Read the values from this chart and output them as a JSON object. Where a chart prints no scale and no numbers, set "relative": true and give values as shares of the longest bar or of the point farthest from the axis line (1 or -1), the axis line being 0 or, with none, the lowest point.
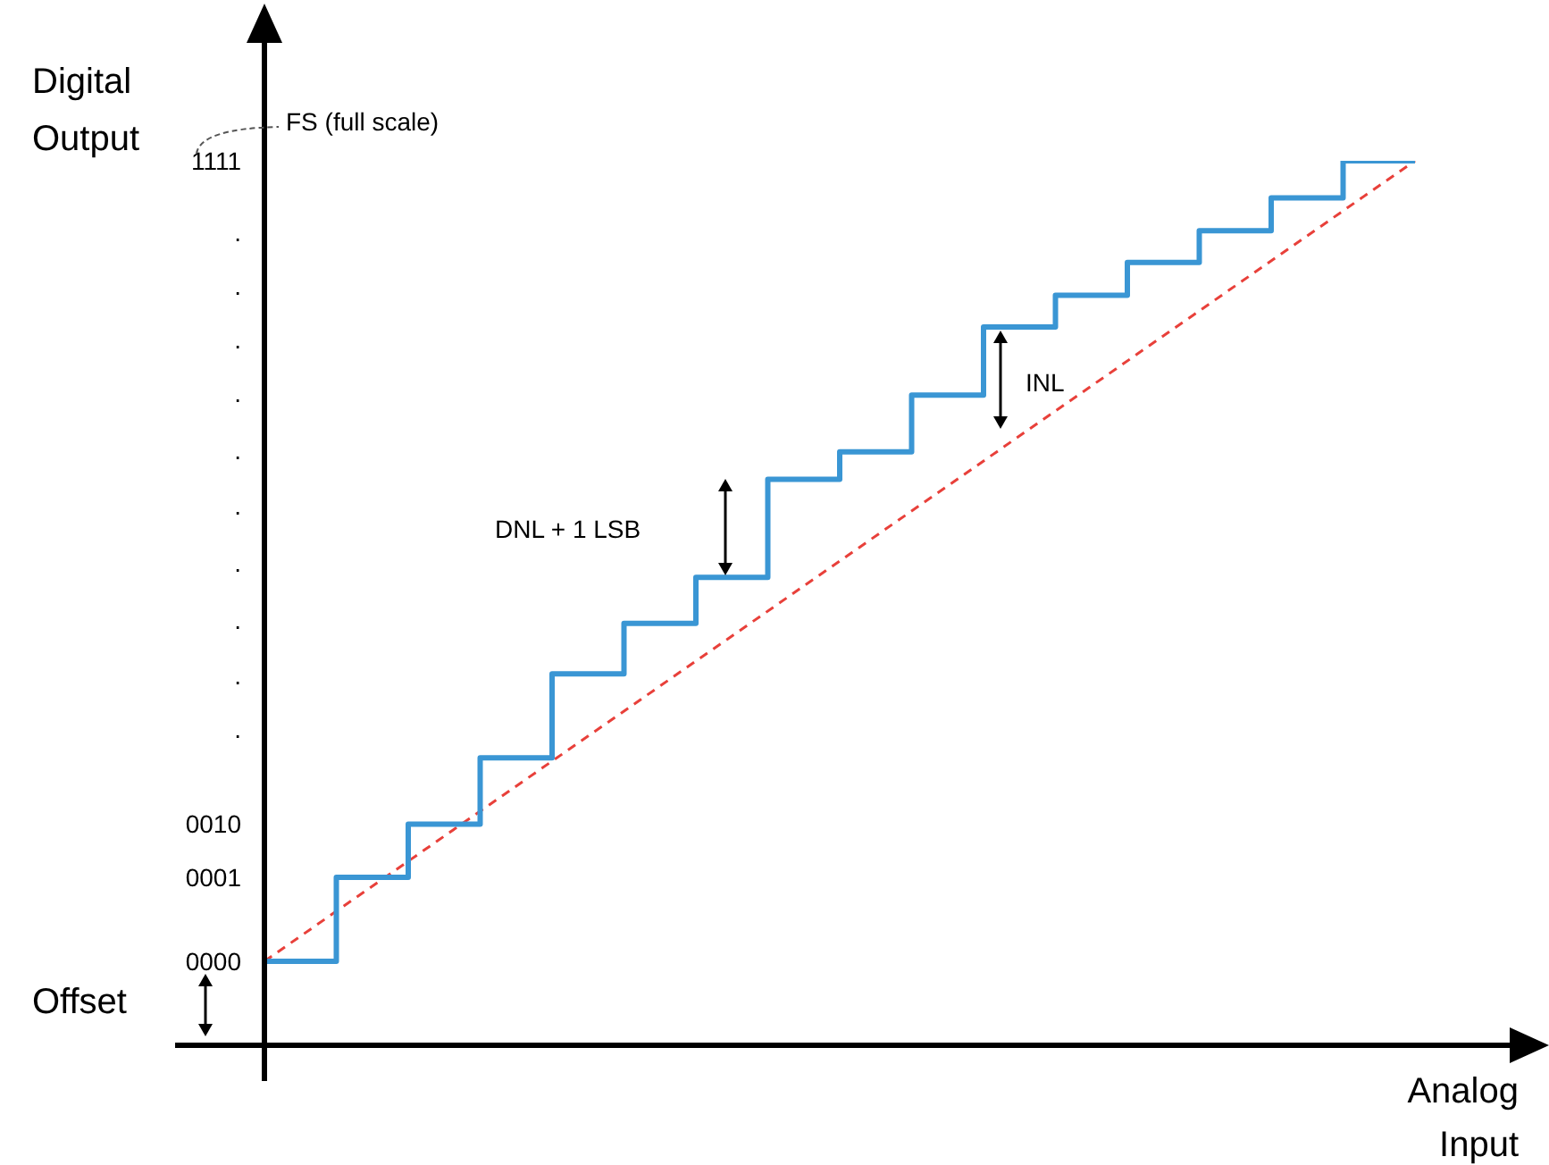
{
  "chart_data": {
    "type": "step",
    "ylabel": "Digital Output",
    "xlabel": "Analog Input",
    "relative": true,
    "categories": [
      null,
      null,
      null,
      null,
      null,
      null,
      null,
      null,
      null,
      null,
      null,
      null,
      null,
      null,
      null,
      null,
      null
    ],
    "series": [
      {
        "color": "#3a96d4",
        "values": [
          0.095,
          0.19,
          0.25,
          0.325,
          0.42,
          0.477,
          0.529,
          0.64,
          0.671,
          0.735,
          0.812,
          0.848,
          0.885,
          0.921,
          0.958,
          1,
          1
        ]
      },
      {
        "type": "line",
        "color": "#e8403a",
        "line_style": "dashed",
        "values": [
          0.095,
          null,
          null,
          null,
          null,
          null,
          null,
          null,
          null,
          null,
          null,
          null,
          null,
          null,
          null,
          null,
          1
        ]
      }
    ],
    "grid": false,
    "legend": false,
    "marker": "none",
    "annotations": [
      "FS (full scale)",
      "DNL + 1 LSB",
      "INL",
      "Offset",
      "0000",
      "0001",
      "0010",
      ".",
      ".",
      ".",
      ".",
      ".",
      ".",
      ".",
      ".",
      ".",
      ".",
      "1111"
    ]
  }
}
